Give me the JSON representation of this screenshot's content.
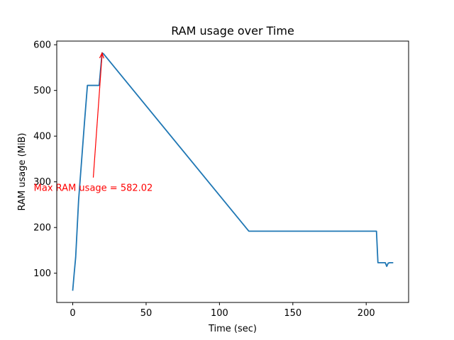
{
  "chart_data": {
    "type": "line",
    "title": "RAM usage over Time",
    "xlabel": "Time (sec)",
    "ylabel": "RAM usage (MiB)",
    "xlim": [
      -10.9,
      228.9
    ],
    "ylim": [
      36,
      608
    ],
    "xticks": [
      0,
      50,
      100,
      150,
      200
    ],
    "yticks": [
      100,
      200,
      300,
      400,
      500,
      600
    ],
    "grid": false,
    "series": [
      {
        "color": "#1f77b4",
        "x": [
          0,
          1,
          2,
          4,
          6,
          8,
          10,
          14,
          18,
          20,
          21,
          120,
          140,
          160,
          180,
          200,
          207,
          208,
          210,
          212,
          213,
          214,
          215,
          216,
          218
        ],
        "y": [
          63,
          100,
          135,
          260,
          345,
          430,
          511,
          511,
          511,
          582.02,
          580,
          192,
          192,
          192,
          192,
          192,
          192,
          123,
          123,
          123,
          123,
          115,
          122,
          123,
          123
        ]
      }
    ],
    "annotations": [
      {
        "text": "Max RAM usage = 582.02",
        "color": "#ff0000",
        "text_at": [
          14,
          300
        ],
        "arrow_to": [
          20,
          582.02
        ]
      }
    ]
  }
}
